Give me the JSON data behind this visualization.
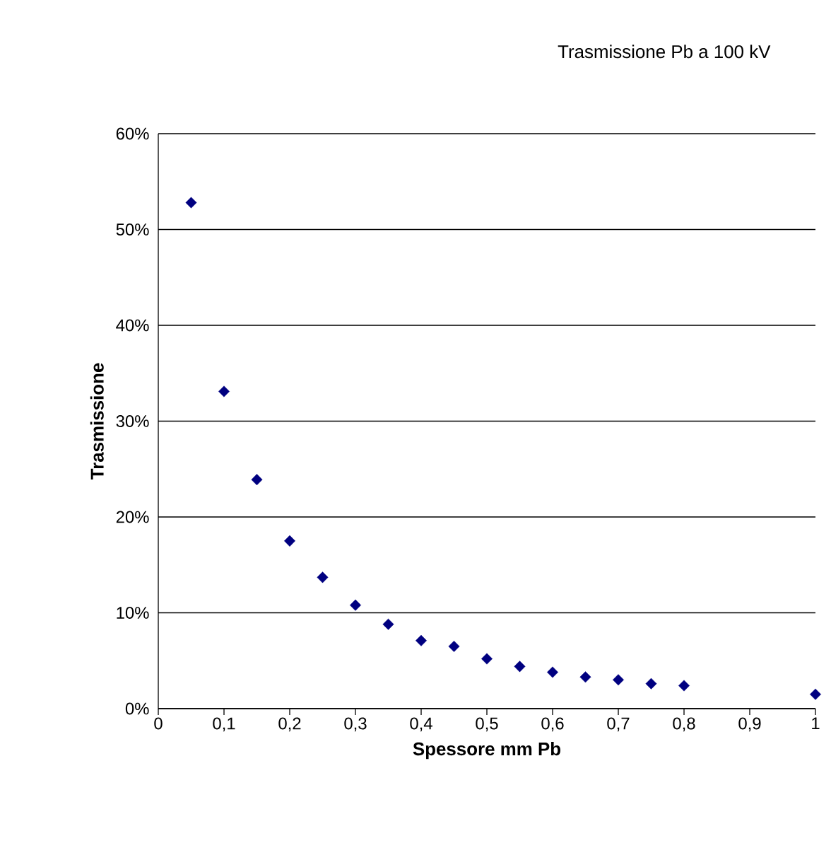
{
  "chart_data": {
    "type": "scatter",
    "title": "Trasmissione Pb a 100 kV",
    "xlabel": "Spessore mm Pb",
    "ylabel": "Trasmissione",
    "x": [
      0.05,
      0.1,
      0.15,
      0.2,
      0.25,
      0.3,
      0.35,
      0.4,
      0.45,
      0.5,
      0.55,
      0.6,
      0.65,
      0.7,
      0.75,
      0.8,
      1.0
    ],
    "values": [
      52.8,
      33.1,
      23.9,
      17.5,
      13.7,
      10.8,
      8.8,
      7.1,
      6.5,
      5.2,
      4.4,
      3.8,
      3.3,
      3.0,
      2.6,
      2.4,
      1.5
    ],
    "color": "#000080",
    "marker": "diamond",
    "grid": "y",
    "xlim": [
      0,
      1
    ],
    "ylim": [
      0,
      60
    ],
    "xticks": [
      0,
      {
        "value": 0.1,
        "label": "0,1"
      },
      {
        "value": 0.2,
        "label": "0,2"
      },
      {
        "value": 0.3,
        "label": "0,3"
      },
      {
        "value": 0.4,
        "label": "0,4"
      },
      {
        "value": 0.5,
        "label": "0,5"
      },
      {
        "value": 0.6,
        "label": "0,6"
      },
      {
        "value": 0.7,
        "label": "0,7"
      },
      {
        "value": 0.8,
        "label": "0,8"
      },
      {
        "value": 0.9,
        "label": "0,9"
      },
      1
    ],
    "yticks": [
      {
        "value": 0,
        "label": "0%"
      },
      {
        "value": 10,
        "label": "10%"
      },
      {
        "value": 20,
        "label": "20%"
      },
      {
        "value": 30,
        "label": "30%"
      },
      {
        "value": 40,
        "label": "40%"
      },
      {
        "value": 50,
        "label": "50%"
      },
      {
        "value": 60,
        "label": "60%"
      }
    ]
  }
}
